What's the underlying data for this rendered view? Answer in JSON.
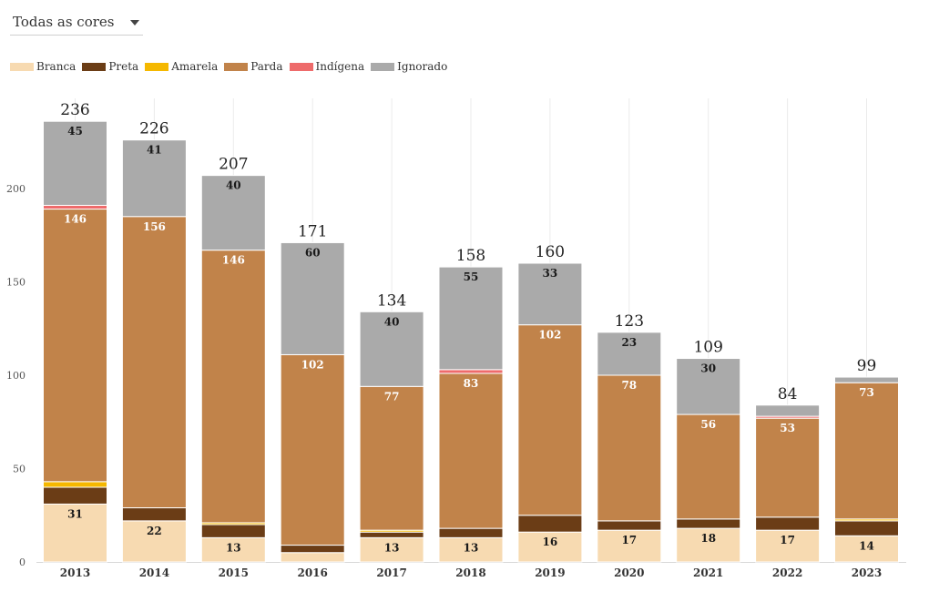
{
  "filter": {
    "selected": "Todas as cores"
  },
  "chart_data": {
    "type": "bar",
    "stacked": true,
    "categories": [
      "2013",
      "2014",
      "2015",
      "2016",
      "2017",
      "2018",
      "2019",
      "2020",
      "2021",
      "2022",
      "2023"
    ],
    "series": [
      {
        "name": "Branca",
        "color": "#f7dab1",
        "values": [
          31,
          22,
          13,
          5,
          13,
          13,
          16,
          17,
          18,
          17,
          14
        ]
      },
      {
        "name": "Preta",
        "color": "#6b3d16",
        "values": [
          9,
          7,
          7,
          4,
          3,
          5,
          9,
          5,
          5,
          7,
          8
        ]
      },
      {
        "name": "Amarela",
        "color": "#f5b800",
        "values": [
          3,
          0,
          1,
          0,
          1,
          0,
          0,
          0,
          0,
          0,
          1
        ]
      },
      {
        "name": "Parda",
        "color": "#c1834a",
        "values": [
          146,
          156,
          146,
          102,
          77,
          83,
          102,
          78,
          56,
          53,
          73
        ]
      },
      {
        "name": "Indígena",
        "color": "#ee6b6b",
        "values": [
          2,
          0,
          0,
          0,
          0,
          2,
          0,
          0,
          0,
          1,
          0
        ]
      },
      {
        "name": "Ignorado",
        "color": "#aaaaaa",
        "values": [
          45,
          41,
          40,
          60,
          40,
          55,
          33,
          23,
          30,
          6,
          3
        ]
      }
    ],
    "totals": [
      236,
      226,
      207,
      171,
      134,
      158,
      160,
      123,
      109,
      84,
      99
    ],
    "segment_labels": {
      "Branca": [
        "31",
        "22",
        "13",
        "",
        "13",
        "13",
        "16",
        "17",
        "18",
        "17",
        "14"
      ],
      "Parda": [
        "146",
        "156",
        "146",
        "102",
        "77",
        "83",
        "102",
        "78",
        "56",
        "53",
        "73"
      ],
      "Ignorado": [
        "45",
        "41",
        "40",
        "60",
        "40",
        "55",
        "33",
        "23",
        "30",
        "",
        ""
      ]
    },
    "y_ticks": [
      0,
      50,
      100,
      150,
      200
    ],
    "ylim": [
      0,
      250
    ],
    "grid": true,
    "legend_position": "top-left"
  }
}
